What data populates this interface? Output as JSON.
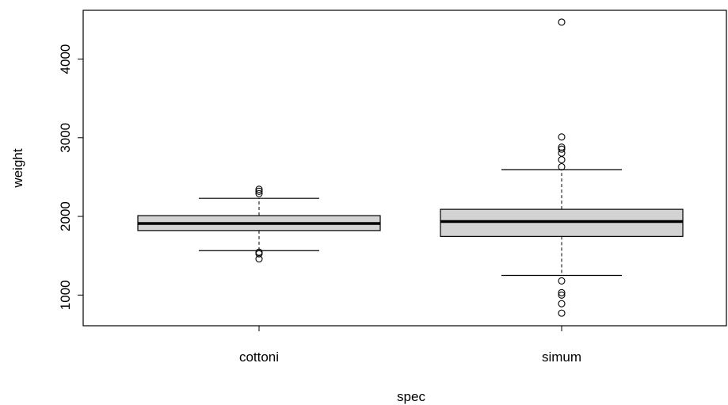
{
  "chart_data": {
    "type": "boxplot",
    "title": "",
    "xlabel": "spec",
    "ylabel": "weight",
    "categories": [
      "cottoni",
      "simum"
    ],
    "ylim": [
      610,
      4620
    ],
    "yticks": [
      1000,
      2000,
      3000,
      4000
    ],
    "grid": false,
    "box_fill": "#d3d3d3",
    "boxes": [
      {
        "name": "cottoni",
        "whisker_low": 1565,
        "q1": 1820,
        "median": 1910,
        "q3": 2010,
        "whisker_high": 2230,
        "outliers": [
          1460,
          1525,
          1545,
          2290,
          2320,
          2345
        ]
      },
      {
        "name": "simum",
        "whisker_low": 1250,
        "q1": 1745,
        "median": 1935,
        "q3": 2090,
        "whisker_high": 2595,
        "outliers": [
          770,
          890,
          1000,
          1030,
          1180,
          2630,
          2720,
          2805,
          2855,
          2880,
          3010,
          4470
        ]
      }
    ]
  }
}
